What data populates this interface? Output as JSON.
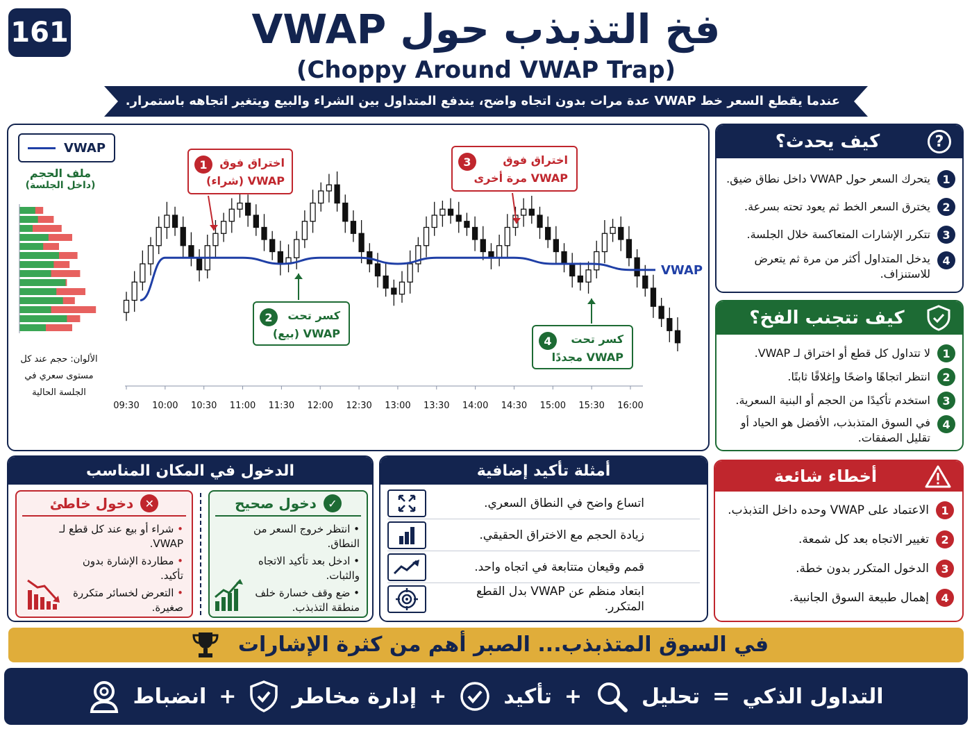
{
  "badge": "161",
  "title": "فخ التذبذب حول VWAP",
  "subtitle": "(Choppy Around VWAP Trap)",
  "banner": "عندما يقطع السعر خط VWAP عدة مرات بدون اتجاه واضح، يندفع المتداول بين الشراء والبيع ويتغير اتجاهه باستمرار.",
  "chart": {
    "legend_label": "VWAP",
    "vwap_label": "VWAP",
    "volume_title": "ملف الحجم",
    "volume_subtitle": "(داخل الجلسة)",
    "volume_note": "الألوان: حجم عند كل مستوى سعري في الجلسة الحالية",
    "callouts": [
      {
        "n": "1",
        "line1": "اختراق فوق",
        "line2": "VWAP (شراء)"
      },
      {
        "n": "2",
        "line1": "كسر تحت",
        "line2": "VWAP (بيع)"
      },
      {
        "n": "3",
        "line1": "اختراق فوق",
        "line2": "VWAP مرة أخرى"
      },
      {
        "n": "4",
        "line1": "كسر تحت",
        "line2": "VWAP مجددًا"
      }
    ]
  },
  "chart_data": {
    "type": "line",
    "x": [
      "09:30",
      "10:00",
      "10:30",
      "11:00",
      "11:30",
      "12:00",
      "12:30",
      "13:00",
      "13:30",
      "14:00",
      "14:30",
      "15:00",
      "15:30",
      "16:00"
    ],
    "series": [
      {
        "name": "VWAP",
        "values": [
          94,
          101,
          101,
          101,
          100,
          101,
          101,
          100,
          101,
          101,
          101,
          100,
          100,
          99
        ]
      }
    ],
    "candles_close": [
      94,
      97,
      100,
      103,
      106,
      108,
      106,
      103,
      101,
      99,
      103,
      105,
      107,
      109,
      110,
      108,
      106,
      104,
      102,
      100,
      101,
      104,
      107,
      110,
      112,
      113,
      110,
      107,
      105,
      102,
      100,
      98,
      96,
      95,
      97,
      100,
      103,
      106,
      108,
      109,
      108,
      107,
      106,
      104,
      102,
      101,
      103,
      106,
      108,
      109,
      108,
      106,
      104,
      102,
      100,
      98,
      97,
      99,
      102,
      105,
      106,
      104,
      101,
      98,
      96,
      93,
      91,
      89,
      87
    ],
    "volume_profile": {
      "green": [
        12,
        14,
        10,
        22,
        18,
        30,
        26,
        24,
        35,
        28,
        33,
        24,
        36,
        20
      ],
      "red": [
        18,
        26,
        32,
        40,
        30,
        44,
        38,
        46,
        36,
        50,
        42,
        58,
        46,
        40
      ]
    }
  },
  "how": {
    "title": "كيف يحدث؟",
    "icon": "question-icon",
    "items": [
      "يتحرك السعر حول VWAP داخل نطاق ضيق.",
      "يخترق السعر الخط ثم يعود تحته بسرعة.",
      "تتكرر الإشارات المتعاكسة خلال الجلسة.",
      "يدخل المتداول أكثر من مرة ثم يتعرض للاستنزاف."
    ]
  },
  "avoid": {
    "title": "كيف تتجنب الفخ؟",
    "icon": "shield-check-icon",
    "items": [
      "لا تتداول كل قطع أو اختراق لـ VWAP.",
      "انتظر اتجاهًا واضحًا وإغلاقًا ثابتًا.",
      "استخدم تأكيدًا من الحجم أو البنية السعرية.",
      "في السوق المتذبذب، الأفضل هو الحياد أو تقليل الصفقات."
    ]
  },
  "entry": {
    "title": "الدخول في المكان المناسب",
    "wrong_title": "دخول خاطئ",
    "wrong_items": [
      "شراء أو بيع عند كل قطع لـ VWAP.",
      "مطاردة الإشارة بدون تأكيد.",
      "التعرض لخسائر متكررة صغيرة."
    ],
    "right_title": "دخول صحيح",
    "right_items": [
      "انتظر خروج السعر من النطاق.",
      "ادخل بعد تأكيد الاتجاه والثبات.",
      "ضع وقف خسارة خلف منطقة التذبذب."
    ]
  },
  "examples": {
    "title": "أمثلة تأكيد إضافية",
    "items": [
      {
        "icon": "expand-icon",
        "text": "اتساع واضح في النطاق السعري."
      },
      {
        "icon": "bar-chart-icon",
        "text": "زيادة الحجم مع الاختراق الحقيقي."
      },
      {
        "icon": "trend-up-icon",
        "text": "قمم وقيعان متتابعة في اتجاه واحد."
      },
      {
        "icon": "target-icon",
        "text": "ابتعاد منظم عن VWAP بدل القطع المتكرر."
      }
    ]
  },
  "mistakes": {
    "title": "أخطاء شائعة",
    "icon": "warning-icon",
    "items": [
      "الاعتماد على VWAP وحده داخل التذبذب.",
      "تغيير الاتجاه بعد كل شمعة.",
      "الدخول المتكرر بدون خطة.",
      "إهمال طبيعة السوق الجانبية."
    ]
  },
  "gold_banner": "في السوق المتذبذب... الصبر أهم من كثرة الإشارات",
  "formula": {
    "lhs": "التداول الذكي",
    "eq": "=",
    "plus": "+",
    "terms": [
      "تحليل",
      "تأكيد",
      "إدارة مخاطر",
      "انضباط"
    ]
  },
  "colors": {
    "navy": "#13244f",
    "green": "#1d6b34",
    "red": "#c0262d",
    "gold": "#e0ad3a",
    "vwap": "#1f3fa6"
  }
}
